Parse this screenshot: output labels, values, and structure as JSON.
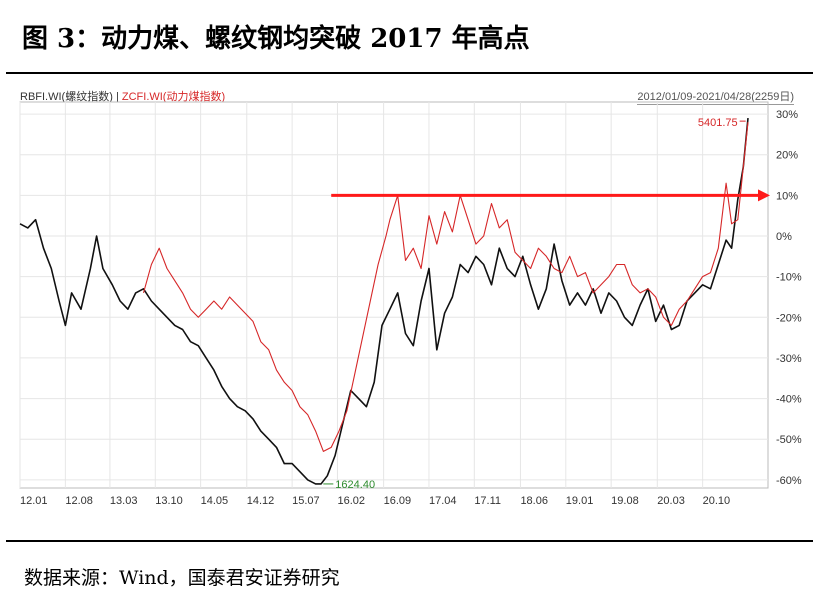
{
  "title": "图 3：动力煤、螺纹钢均突破 2017 年高点",
  "source": "数据来源：Wind，国泰君安证券研究",
  "legend_text": {
    "series1": "RBFI.WI(螺纹指数)",
    "separator": " | ",
    "series2": "ZCFI.WI(动力煤指数)"
  },
  "date_range": "2012/01/09-2021/04/28(2259日)",
  "chart_data": {
    "type": "line",
    "x_ticks": [
      "12.01",
      "12.08",
      "13.03",
      "13.10",
      "14.05",
      "14.12",
      "15.07",
      "16.02",
      "16.09",
      "17.04",
      "17.11",
      "18.06",
      "19.01",
      "19.08",
      "20.03",
      "20.10"
    ],
    "y_ticks": [
      "30%",
      "20%",
      "10%",
      "0%",
      "-10%",
      "-20%",
      "-30%",
      "-40%",
      "-50%",
      "-60%"
    ],
    "ylim": [
      -62,
      31
    ],
    "x_range": [
      2012.02,
      2021.33
    ],
    "y_unit": "%",
    "annotations": {
      "high_label": "5401.75",
      "high_x": 2021.3,
      "high_y": 29,
      "low_label": "1624.40",
      "low_x": 2015.95,
      "low_y": -61
    },
    "highlight_line_level": 10,
    "series": [
      {
        "name": "RBFI.WI(螺纹指数)",
        "color": "#111111",
        "x": [
          2012.02,
          2012.12,
          2012.22,
          2012.32,
          2012.42,
          2012.52,
          2012.6,
          2012.68,
          2012.8,
          2012.92,
          2013.0,
          2013.08,
          2013.2,
          2013.3,
          2013.4,
          2013.5,
          2013.6,
          2013.7,
          2013.8,
          2013.9,
          2014.0,
          2014.1,
          2014.2,
          2014.3,
          2014.4,
          2014.5,
          2014.6,
          2014.7,
          2014.8,
          2014.9,
          2015.0,
          2015.1,
          2015.2,
          2015.3,
          2015.4,
          2015.5,
          2015.6,
          2015.7,
          2015.8,
          2015.87,
          2015.95,
          2016.05,
          2016.15,
          2016.25,
          2016.35,
          2016.45,
          2016.55,
          2016.65,
          2016.75,
          2016.85,
          2016.95,
          2017.05,
          2017.15,
          2017.25,
          2017.35,
          2017.45,
          2017.55,
          2017.65,
          2017.75,
          2017.85,
          2017.95,
          2018.05,
          2018.15,
          2018.25,
          2018.35,
          2018.45,
          2018.55,
          2018.65,
          2018.75,
          2018.85,
          2018.95,
          2019.05,
          2019.15,
          2019.25,
          2019.35,
          2019.45,
          2019.55,
          2019.65,
          2019.75,
          2019.85,
          2019.95,
          2020.05,
          2020.15,
          2020.25,
          2020.35,
          2020.45,
          2020.55,
          2020.65,
          2020.75,
          2020.85,
          2020.95,
          2021.05,
          2021.12,
          2021.2,
          2021.27,
          2021.33
        ],
        "y": [
          3,
          2,
          4,
          -3,
          -8,
          -16,
          -22,
          -14,
          -18,
          -8,
          0,
          -8,
          -12,
          -16,
          -18,
          -14,
          -13,
          -16,
          -18,
          -20,
          -22,
          -23,
          -26,
          -27,
          -30,
          -33,
          -37,
          -40,
          -42,
          -43,
          -45,
          -48,
          -50,
          -52,
          -56,
          -56,
          -58,
          -60,
          -61,
          -61,
          -59,
          -54,
          -46,
          -38,
          -40,
          -42,
          -36,
          -22,
          -18,
          -14,
          -24,
          -27,
          -16,
          -8,
          -28,
          -19,
          -15,
          -7,
          -9,
          -5,
          -7,
          -12,
          -3,
          -8,
          -10,
          -5,
          -12,
          -18,
          -13,
          -2,
          -11,
          -17,
          -14,
          -17,
          -13,
          -19,
          -14,
          -16,
          -20,
          -22,
          -17,
          -13,
          -21,
          -17,
          -23,
          -22,
          -16,
          -14,
          -12,
          -13,
          -7,
          -1,
          -3,
          9,
          17,
          29
        ]
      },
      {
        "name": "ZCFI.WI(动力煤指数)",
        "color": "#d62728",
        "x": [
          2013.6,
          2013.7,
          2013.8,
          2013.9,
          2014.0,
          2014.1,
          2014.2,
          2014.3,
          2014.4,
          2014.5,
          2014.6,
          2014.7,
          2014.8,
          2014.9,
          2015.0,
          2015.1,
          2015.2,
          2015.3,
          2015.4,
          2015.5,
          2015.6,
          2015.7,
          2015.8,
          2015.9,
          2016.0,
          2016.1,
          2016.2,
          2016.3,
          2016.4,
          2016.5,
          2016.6,
          2016.7,
          2016.75,
          2016.85,
          2016.95,
          2017.05,
          2017.15,
          2017.25,
          2017.35,
          2017.45,
          2017.55,
          2017.65,
          2017.75,
          2017.85,
          2017.95,
          2018.05,
          2018.15,
          2018.25,
          2018.35,
          2018.45,
          2018.55,
          2018.65,
          2018.75,
          2018.85,
          2018.95,
          2019.05,
          2019.15,
          2019.25,
          2019.35,
          2019.45,
          2019.55,
          2019.65,
          2019.75,
          2019.85,
          2019.95,
          2020.05,
          2020.15,
          2020.25,
          2020.35,
          2020.45,
          2020.55,
          2020.65,
          2020.75,
          2020.85,
          2020.95,
          2021.05,
          2021.12,
          2021.2,
          2021.27,
          2021.33
        ],
        "y": [
          -14,
          -7,
          -3,
          -8,
          -11,
          -14,
          -18,
          -20,
          -18,
          -16,
          -18,
          -15,
          -17,
          -19,
          -21,
          -26,
          -28,
          -33,
          -36,
          -38,
          -42,
          -44,
          -48,
          -53,
          -52,
          -48,
          -43,
          -34,
          -25,
          -16,
          -7,
          0,
          4,
          10,
          -6,
          -3,
          -8,
          5,
          -2,
          6,
          1,
          10,
          4,
          -2,
          0,
          8,
          2,
          4,
          -4,
          -6,
          -8,
          -3,
          -5,
          -8,
          -9,
          -5,
          -10,
          -9,
          -14,
          -12,
          -10,
          -7,
          -7,
          -12,
          -14,
          -13,
          -15,
          -20,
          -22,
          -18,
          -16,
          -13,
          -10,
          -9,
          -3,
          13,
          3,
          4,
          17,
          28
        ]
      }
    ]
  }
}
